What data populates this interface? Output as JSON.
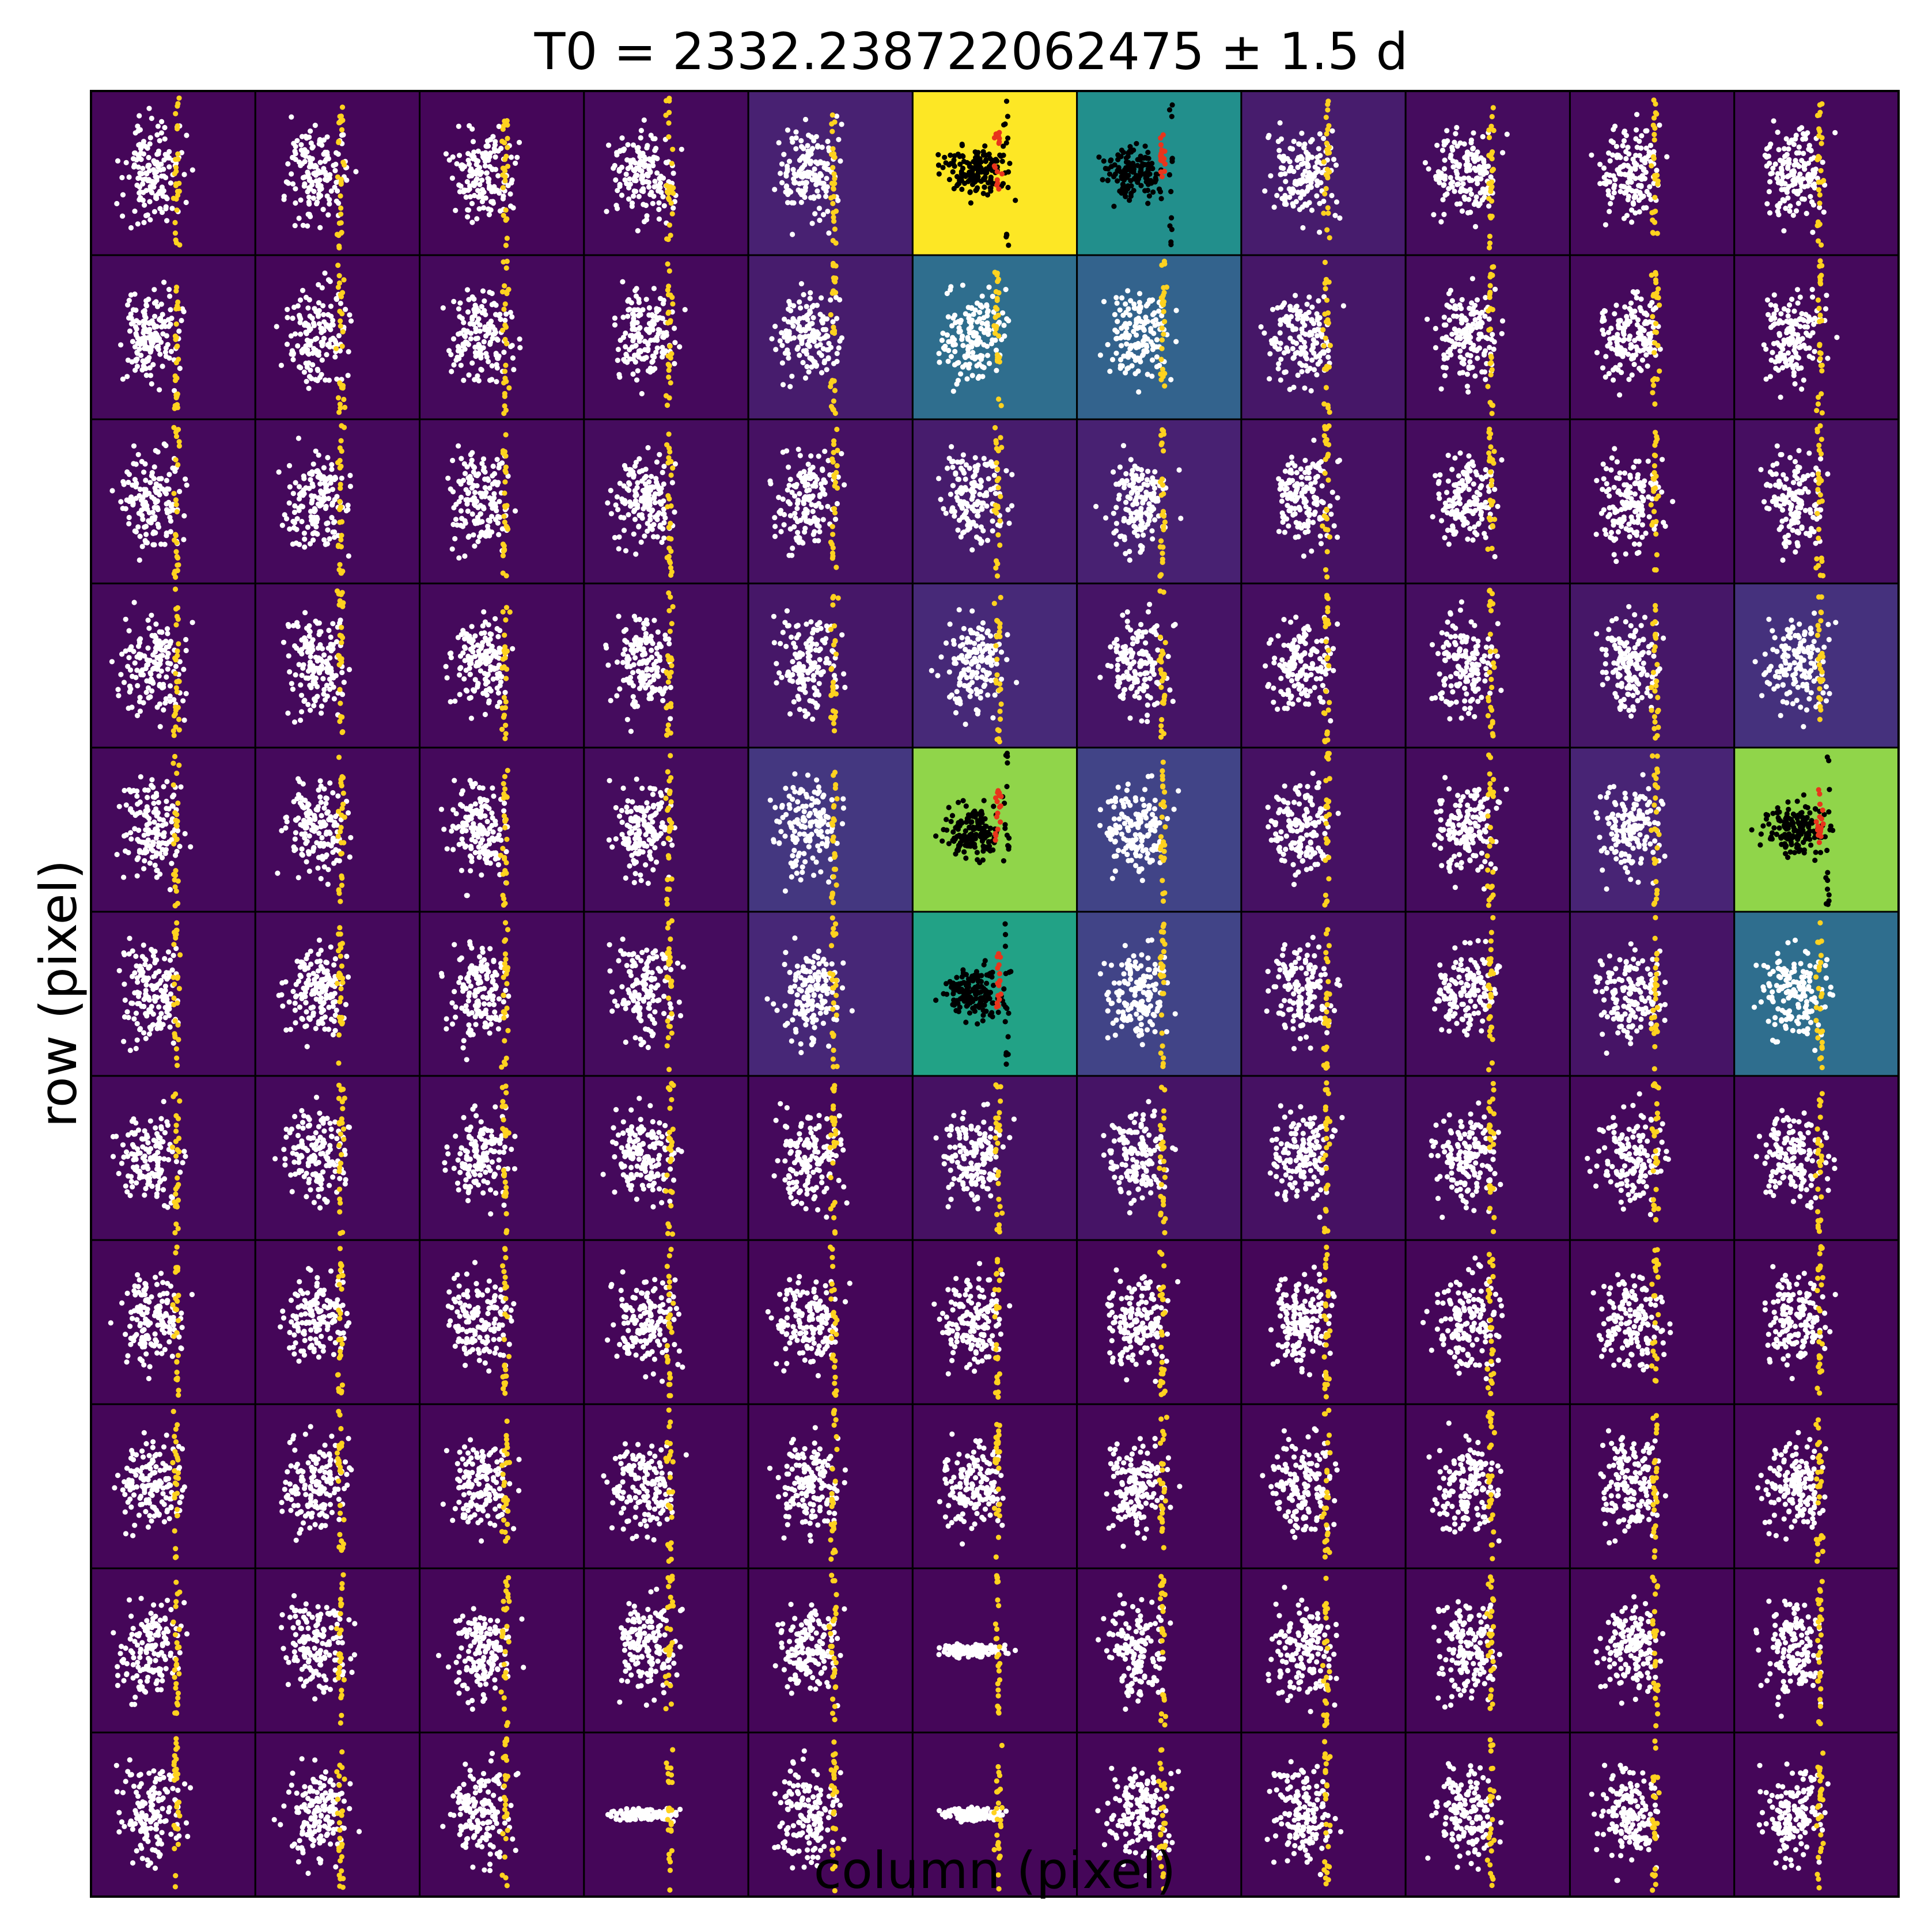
{
  "chart_data": {
    "type": "scatter",
    "title": "T0 = 2332.238722062475 ± 1.5 d",
    "xlabel": "column (pixel)",
    "ylabel": "row (pixel)",
    "grid_rows": 11,
    "grid_cols": 11,
    "pixel_level_scale": "viridis",
    "pixel_levels": [
      [
        0.02,
        0.02,
        0.02,
        0.03,
        0.12,
        1.0,
        0.62,
        0.1,
        0.04,
        0.03,
        0.03
      ],
      [
        0.03,
        0.02,
        0.03,
        0.03,
        0.1,
        0.45,
        0.4,
        0.08,
        0.04,
        0.03,
        0.03
      ],
      [
        0.03,
        0.03,
        0.03,
        0.04,
        0.06,
        0.1,
        0.12,
        0.06,
        0.04,
        0.03,
        0.05
      ],
      [
        0.03,
        0.03,
        0.03,
        0.04,
        0.08,
        0.15,
        0.07,
        0.05,
        0.05,
        0.08,
        0.18
      ],
      [
        0.03,
        0.03,
        0.03,
        0.04,
        0.2,
        0.9,
        0.25,
        0.06,
        0.04,
        0.13,
        0.9
      ],
      [
        0.03,
        0.03,
        0.03,
        0.04,
        0.14,
        0.72,
        0.25,
        0.06,
        0.04,
        0.07,
        0.45
      ],
      [
        0.03,
        0.03,
        0.03,
        0.03,
        0.03,
        0.06,
        0.07,
        0.06,
        0.04,
        0.03,
        0.03
      ],
      [
        0.02,
        0.02,
        0.02,
        0.02,
        0.02,
        0.02,
        0.02,
        0.02,
        0.02,
        0.02,
        0.02
      ],
      [
        0.02,
        0.02,
        0.02,
        0.02,
        0.02,
        0.02,
        0.02,
        0.02,
        0.02,
        0.02,
        0.02
      ],
      [
        0.02,
        0.02,
        0.02,
        0.02,
        0.02,
        0.02,
        0.02,
        0.02,
        0.02,
        0.02,
        0.02
      ],
      [
        0.02,
        0.02,
        0.02,
        0.02,
        0.02,
        0.02,
        0.02,
        0.02,
        0.02,
        0.02,
        0.02
      ]
    ],
    "highlight_pixels": [
      [
        0,
        5
      ],
      [
        0,
        6
      ],
      [
        4,
        5
      ],
      [
        4,
        10
      ],
      [
        5,
        5
      ]
    ],
    "series": [
      {
        "color": "#ffffff",
        "role": "out-of-transit points"
      },
      {
        "color": "#ffd21f",
        "role": "in-transit points"
      },
      {
        "color": "#000000",
        "role": "out-of-transit points (bright pixels)"
      },
      {
        "color": "#e8351c",
        "role": "in-transit points (bright pixels)"
      }
    ],
    "grid": false,
    "ticks": "none"
  }
}
